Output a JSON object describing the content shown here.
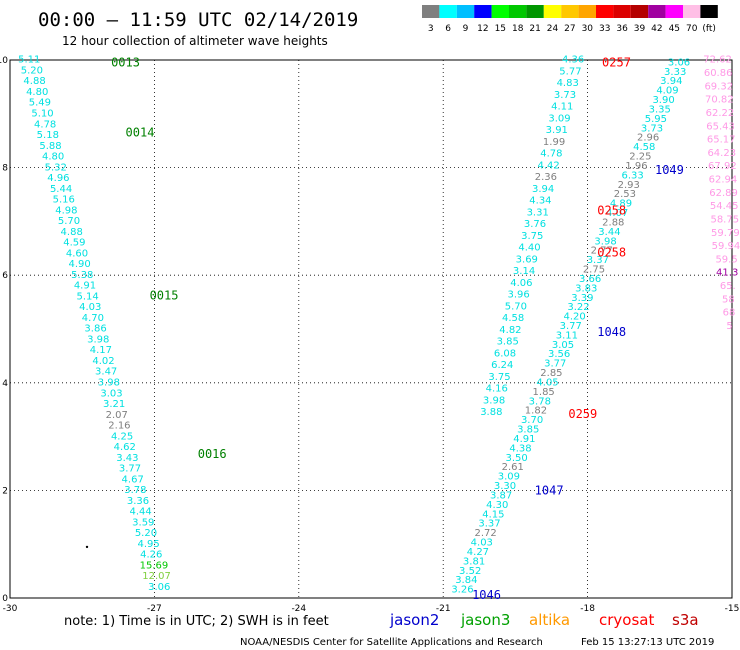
{
  "header": {
    "title": "00:00 — 11:59 UTC 02/14/2019",
    "subtitle": "12 hour collection of altimeter wave heights"
  },
  "colorbar": {
    "colors": [
      "#7f7f7f",
      "#00ffff",
      "#00bfff",
      "#0000ff",
      "#00ff00",
      "#00c800",
      "#009600",
      "#ffff00",
      "#ffc800",
      "#ffa500",
      "#ff0000",
      "#dc0000",
      "#b40000",
      "#a000a0",
      "#ff00ff",
      "#ffbfe6",
      "#000000"
    ],
    "labels": [
      "3",
      "6",
      "9",
      "12",
      "15",
      "18",
      "21",
      "24",
      "27",
      "30",
      "33",
      "36",
      "39",
      "42",
      "45",
      "70",
      "(ft)"
    ]
  },
  "axes": {
    "xticks": [
      "-30",
      "-27",
      "-24",
      "-21",
      "-18",
      "-15"
    ],
    "yticks": [
      "0",
      "2",
      "4",
      "6",
      "8",
      "10"
    ],
    "xlim": [
      -30,
      -15
    ],
    "ylim": [
      0,
      10
    ],
    "grid": true
  },
  "footer": {
    "note": "note:  1) Time is in UTC;  2) SWH is in feet",
    "credit": "NOAA/NESDIS Center for Satellite Applications and Research",
    "timestamp": "Feb 15 13:27:13 UTC 2019"
  },
  "legend": [
    {
      "name": "jason2",
      "color": "#0000cc"
    },
    {
      "name": "jason3",
      "color": "#00a000"
    },
    {
      "name": "altika",
      "color": "#ff9900"
    },
    {
      "name": "cryosat",
      "color": "#ff0000"
    },
    {
      "name": "s3a",
      "color": "#c00000"
    }
  ],
  "time_labels": [
    {
      "text": "0013",
      "color": "#008000",
      "lon": -27.9,
      "lat": 9.88
    },
    {
      "text": "0014",
      "color": "#008000",
      "lon": -27.6,
      "lat": 8.58
    },
    {
      "text": "0015",
      "color": "#008000",
      "lon": -27.1,
      "lat": 5.55
    },
    {
      "text": "0016",
      "color": "#008000",
      "lon": -26.1,
      "lat": 2.6
    },
    {
      "text": "0257",
      "color": "#ff0000",
      "lon": -17.7,
      "lat": 9.88
    },
    {
      "text": "0258",
      "color": "#ff0000",
      "lon": -17.8,
      "lat": 7.13
    },
    {
      "text": "0258",
      "color": "#ff0000",
      "lon": -17.8,
      "lat": 6.35
    },
    {
      "text": "0259",
      "color": "#ff0000",
      "lon": -18.4,
      "lat": 3.35
    },
    {
      "text": "1049",
      "color": "#0000cc",
      "lon": -16.6,
      "lat": 7.88
    },
    {
      "text": "1048",
      "color": "#0000cc",
      "lon": -17.8,
      "lat": 4.87
    },
    {
      "text": "1047",
      "color": "#0000cc",
      "lon": -19.1,
      "lat": 1.92
    },
    {
      "text": "1046",
      "color": "#0000cc",
      "lon": -20.4,
      "lat": -0.02
    }
  ],
  "tracks": [
    {
      "name": "jason3-0013",
      "start": [
        -29.6,
        9.95
      ],
      "end": [
        -26.9,
        0.15
      ],
      "values": [
        "5.11",
        "5.20",
        "4.88",
        "4.80",
        "5.49",
        "5.10",
        "4.78",
        "5.18",
        "5.88",
        "4.80",
        "5.32",
        "4.96",
        "5.44",
        "5.16",
        "4.98",
        "5.70",
        "4.88",
        "4.59",
        "4.60",
        "4.90",
        "5.38",
        "4.91",
        "5.14",
        "4.03",
        "4.70",
        "3.86",
        "3.98",
        "4.17",
        "4.02",
        "3.47",
        "3.98",
        "3.03",
        "3.21",
        "2.07",
        "2.16",
        "4.25",
        "4.62",
        "3.43",
        "3.77",
        "4.67",
        "3.78",
        "3.36",
        "4.44",
        "3.59",
        "5.20",
        "4.95",
        "4.26",
        "15.69",
        "12.07",
        "3.06"
      ],
      "colors": {
        "2.07": "#7f7f7f",
        "2.16": "#7f7f7f",
        "15.69": "#00c800",
        "12.07": "#80d040"
      }
    },
    {
      "name": "cryosat-0257",
      "start": [
        -18.3,
        9.95
      ],
      "end": [
        -20.0,
        3.4
      ],
      "values": [
        "4.36",
        "5.77",
        "4.83",
        "3.73",
        "4.11",
        "3.09",
        "3.91",
        "1.99",
        "4.78",
        "4.42",
        "2.36",
        "3.94",
        "4.34",
        "3.31",
        "3.76",
        "3.75",
        "4.40",
        "3.69",
        "3.14",
        "4.06",
        "3.96",
        "5.70",
        "4.58",
        "4.82",
        "3.85",
        "6.08",
        "6.24",
        "3.75",
        "4.16",
        "3.98",
        "3.88"
      ],
      "colors": {
        "1.99": "#7f7f7f",
        "2.36": "#7f7f7f"
      }
    },
    {
      "name": "jason2-1049",
      "start": [
        -16.1,
        9.9
      ],
      "end": [
        -20.6,
        0.1
      ],
      "values": [
        "3.06",
        "3.33",
        "3.94",
        "4.09",
        "3.90",
        "3.35",
        "5.95",
        "3.73",
        "2.96",
        "4.58",
        "2.25",
        "1.96",
        "6.33",
        "2.93",
        "2.53",
        "4.89",
        "4.07",
        "2.88",
        "3.44",
        "3.98",
        "2.77",
        "3.37",
        "2.75",
        "3.66",
        "3.83",
        "3.39",
        "3.22",
        "4.20",
        "3.77",
        "3.11",
        "3.05",
        "3.56",
        "3.77",
        "2.85",
        "4.05",
        "1.85",
        "3.78",
        "1.82",
        "3.70",
        "3.85",
        "4.91",
        "4.38",
        "3.50",
        "2.61",
        "3.09",
        "3.30",
        "3.87",
        "4.30",
        "4.15",
        "3.37",
        "2.72",
        "4.03",
        "4.27",
        "3.81",
        "3.52",
        "3.84",
        "3.26"
      ],
      "colors": {
        "2.96": "#7f7f7f",
        "2.25": "#7f7f7f",
        "1.96": "#7f7f7f",
        "2.93": "#7f7f7f",
        "2.53": "#7f7f7f",
        "2.88": "#7f7f7f",
        "2.77": "#7f7f7f",
        "2.75": "#7f7f7f",
        "2.85": "#7f7f7f",
        "1.85": "#7f7f7f",
        "1.82": "#7f7f7f",
        "2.61": "#7f7f7f",
        "2.72": "#7f7f7f"
      }
    },
    {
      "name": "s3a",
      "start": [
        -15.3,
        9.95
      ],
      "end": [
        -15.05,
        5.0
      ],
      "values": [
        "72.62",
        "60.86",
        "69.32",
        "70.82",
        "62.22",
        "65.43",
        "65.17",
        "64.23",
        "67.92",
        "62.94",
        "62.89",
        "54.45",
        "58.75",
        "59.79",
        "59.94",
        "59.5",
        "41.3",
        "65.",
        "58",
        "68",
        "5"
      ],
      "colors": {
        "41.3": "#a000a0"
      },
      "default_color": "#ff99e6"
    }
  ],
  "markers": [
    {
      "name": "dot",
      "lon": -28.4,
      "lat": 0.95
    }
  ]
}
